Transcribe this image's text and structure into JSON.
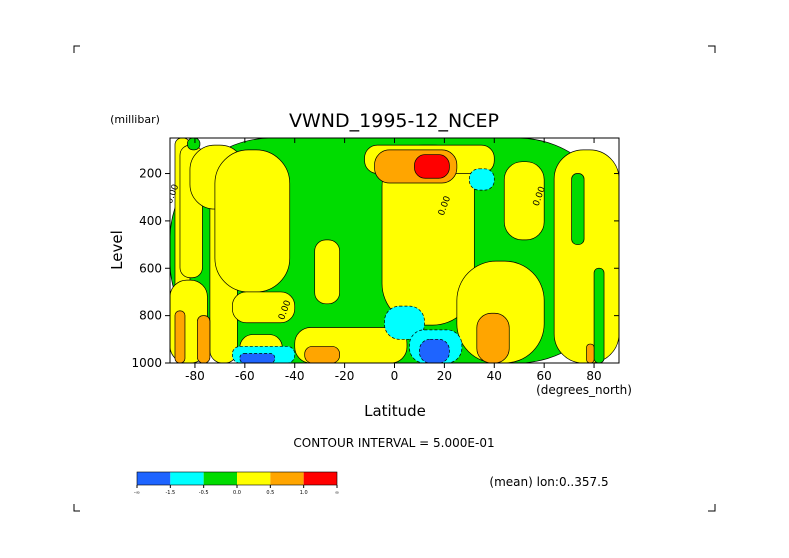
{
  "chart_data": {
    "type": "heatmap",
    "title": "VWND_1995-12_NCEP",
    "y_unit": "(millibar)",
    "ylabel": "Level",
    "xlabel": "Latitude",
    "x_unit": "(degrees_north)",
    "xlim": [
      -90,
      90
    ],
    "ylim": [
      1000,
      50
    ],
    "x_ticks": [
      {
        "v": -80,
        "label": "-80"
      },
      {
        "v": -60,
        "label": "-60"
      },
      {
        "v": -40,
        "label": "-40"
      },
      {
        "v": -20,
        "label": "-20"
      },
      {
        "v": 0,
        "label": "0"
      },
      {
        "v": 20,
        "label": "20"
      },
      {
        "v": 40,
        "label": "40"
      },
      {
        "v": 60,
        "label": "60"
      },
      {
        "v": 80,
        "label": "80"
      }
    ],
    "y_ticks": [
      {
        "v": 200,
        "label": "200"
      },
      {
        "v": 400,
        "label": "400"
      },
      {
        "v": 600,
        "label": "600"
      },
      {
        "v": 800,
        "label": "800"
      },
      {
        "v": 1000,
        "label": "1000"
      }
    ],
    "contour_interval_text": "CONTOUR INTERVAL = 5.000E-01",
    "mean_text": "(mean) lon:0..357.5",
    "contour_labels": [
      {
        "text": "0.00",
        "lat": -88,
        "lev": 290
      },
      {
        "text": "0.00",
        "lat": -43,
        "lev": 780
      },
      {
        "text": "0.00",
        "lat": 21,
        "lev": 340
      },
      {
        "text": "0.00",
        "lat": 59,
        "lev": 300
      }
    ],
    "colorbar": {
      "colors": [
        "#1e64ff",
        "#00ffff",
        "#00dc00",
        "#ffff00",
        "#ffa500",
        "#ff0000"
      ],
      "labels": [
        "-∞",
        "-1.5",
        "-0.5",
        "0.0",
        "0.5",
        "1.0",
        "∞"
      ]
    },
    "legend_class_colors": {
      "-2": "#1e64ff",
      "-1": "#00ffff",
      "0": "#00dc00",
      "1": "#ffff00",
      "2": "#ffa500",
      "3": "#ff0000"
    },
    "regions": [
      {
        "cls": 0,
        "lev": [
          50,
          1000
        ],
        "lat": [
          -90,
          90
        ]
      },
      {
        "cls": 1,
        "lev": [
          50,
          1000
        ],
        "lat": [
          -88,
          -82
        ]
      },
      {
        "cls": 1,
        "lev": [
          80,
          640
        ],
        "lat": [
          -86,
          -77
        ]
      },
      {
        "cls": 1,
        "lev": [
          650,
          1000
        ],
        "lat": [
          -90,
          -75
        ]
      },
      {
        "cls": 1,
        "lev": [
          300,
          1000
        ],
        "lat": [
          -74,
          -63
        ]
      },
      {
        "cls": 1,
        "lev": [
          80,
          350
        ],
        "lat": [
          -82,
          -60
        ]
      },
      {
        "cls": 1,
        "lev": [
          100,
          700
        ],
        "lat": [
          -72,
          -42
        ]
      },
      {
        "cls": 1,
        "lev": [
          700,
          830
        ],
        "lat": [
          -65,
          -40
        ]
      },
      {
        "cls": 1,
        "lev": [
          880,
          1000
        ],
        "lat": [
          -62,
          -45
        ]
      },
      {
        "cls": 1,
        "lev": [
          480,
          750
        ],
        "lat": [
          -32,
          -22
        ]
      },
      {
        "cls": 1,
        "lev": [
          80,
          840
        ],
        "lat": [
          -5,
          32
        ]
      },
      {
        "cls": 1,
        "lev": [
          80,
          200
        ],
        "lat": [
          -12,
          40
        ]
      },
      {
        "cls": 1,
        "lev": [
          850,
          1000
        ],
        "lat": [
          -40,
          5
        ]
      },
      {
        "cls": 1,
        "lev": [
          570,
          1000
        ],
        "lat": [
          25,
          60
        ]
      },
      {
        "cls": 1,
        "lev": [
          150,
          480
        ],
        "lat": [
          44,
          60
        ]
      },
      {
        "cls": 1,
        "lev": [
          100,
          1000
        ],
        "lat": [
          64,
          90
        ]
      },
      {
        "cls": 0,
        "lev": [
          200,
          500
        ],
        "lat": [
          71,
          76
        ]
      },
      {
        "cls": 0,
        "lev": [
          600,
          1000
        ],
        "lat": [
          80,
          84
        ]
      },
      {
        "cls": 0,
        "lev": [
          50,
          100
        ],
        "lat": [
          -83,
          -78
        ]
      },
      {
        "cls": 2,
        "lev": [
          780,
          1000
        ],
        "lat": [
          -88,
          -84
        ]
      },
      {
        "cls": 2,
        "lev": [
          800,
          1000
        ],
        "lat": [
          -79,
          -74
        ]
      },
      {
        "cls": 2,
        "lev": [
          930,
          1000
        ],
        "lat": [
          -36,
          -22
        ]
      },
      {
        "cls": 2,
        "lev": [
          790,
          1000
        ],
        "lat": [
          33,
          46
        ]
      },
      {
        "cls": 2,
        "lev": [
          920,
          1000
        ],
        "lat": [
          77,
          80
        ]
      },
      {
        "cls": 2,
        "lev": [
          100,
          240
        ],
        "lat": [
          -8,
          25
        ]
      },
      {
        "cls": 3,
        "lev": [
          120,
          220
        ],
        "lat": [
          8,
          22
        ]
      },
      {
        "cls": -1,
        "lev": [
          760,
          900
        ],
        "lat": [
          -4,
          12
        ]
      },
      {
        "cls": -1,
        "lev": [
          860,
          1000
        ],
        "lat": [
          6,
          27
        ]
      },
      {
        "cls": -1,
        "lev": [
          930,
          1000
        ],
        "lat": [
          -65,
          -40
        ]
      },
      {
        "cls": -1,
        "lev": [
          180,
          270
        ],
        "lat": [
          30,
          40
        ]
      },
      {
        "cls": -2,
        "lev": [
          900,
          1000
        ],
        "lat": [
          10,
          22
        ]
      },
      {
        "cls": -2,
        "lev": [
          960,
          1000
        ],
        "lat": [
          -62,
          -48
        ]
      }
    ]
  }
}
